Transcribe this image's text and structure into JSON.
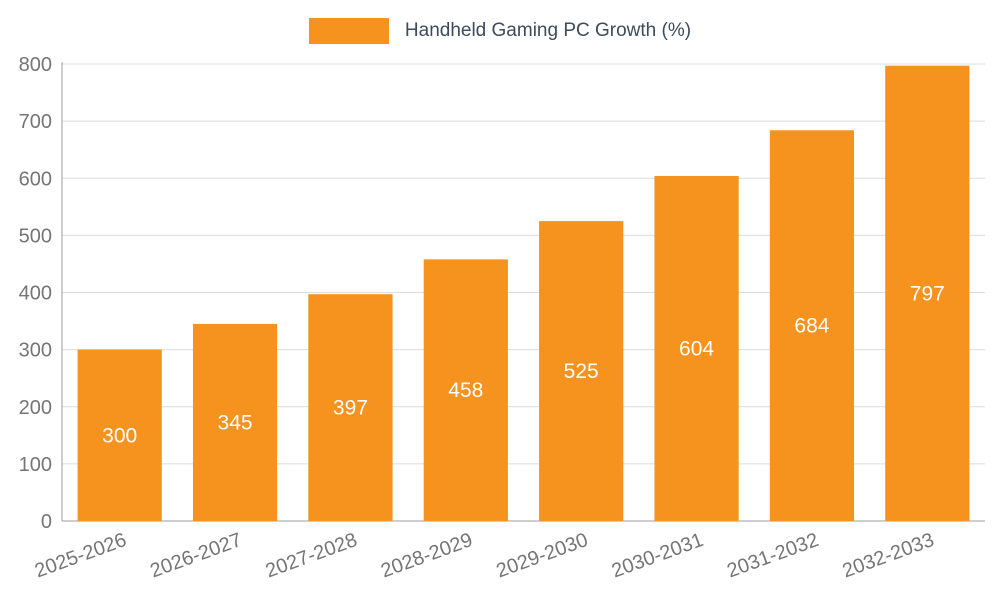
{
  "chart_data": {
    "type": "bar",
    "title": "Handheld Gaming PC Growth (%)",
    "categories": [
      "2025-2026",
      "2026-2027",
      "2027-2028",
      "2028-2029",
      "2029-2030",
      "2030-2031",
      "2031-2032",
      "2032-2033"
    ],
    "values": [
      300,
      345,
      397,
      458,
      525,
      604,
      684,
      797
    ],
    "xlabel": "",
    "ylabel": "",
    "ylim": [
      0,
      800
    ],
    "ytick_step": 100,
    "ytick_labels": [
      "0",
      "100",
      "200",
      "300",
      "400",
      "500",
      "600",
      "700",
      "800"
    ],
    "grid": "horizontal",
    "legend_position": "top-center",
    "bar_color": "#F6921E",
    "value_label_color": "#ffffff",
    "axis_color": "#9e9e9e",
    "grid_color": "#dcdcdc",
    "tick_label_color": "#757575",
    "legend_text_color": "#3d4b5a"
  }
}
